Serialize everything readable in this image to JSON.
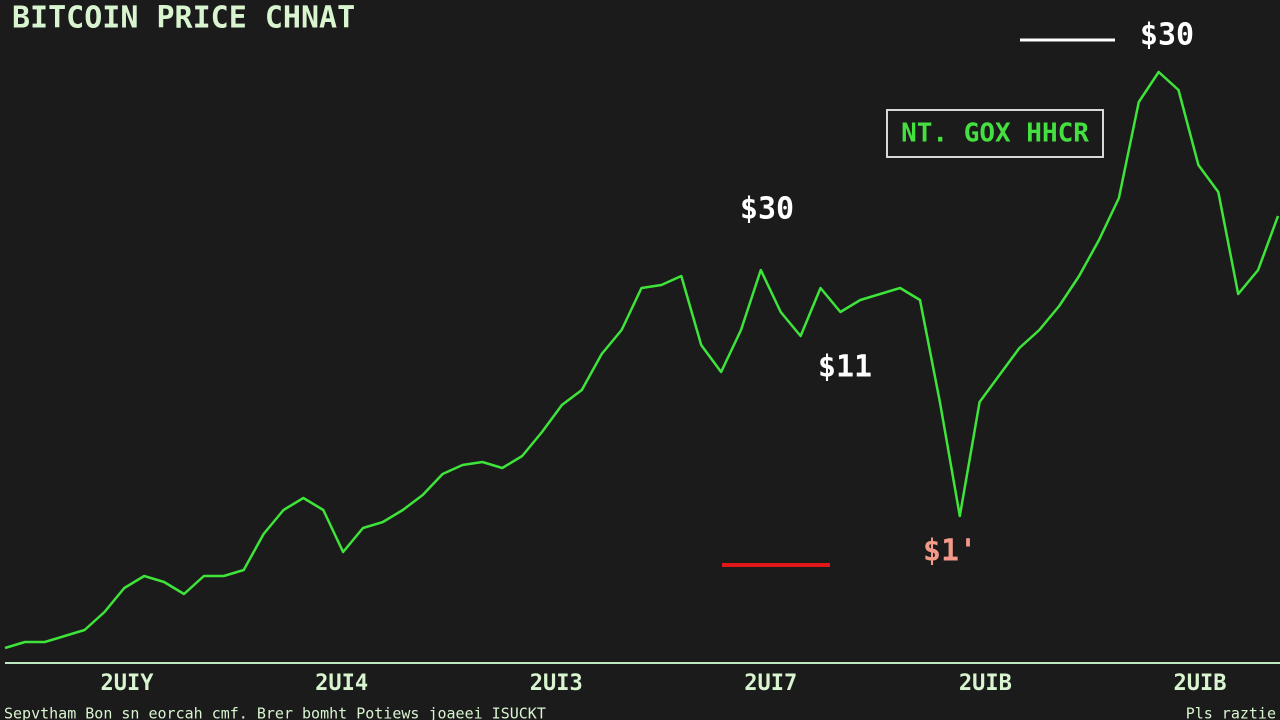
{
  "chart_data": {
    "type": "line",
    "title": "BITCOIN PRICE CHNAT",
    "x_labels": [
      "2UIY",
      "2UI4",
      "2UI3",
      "2UI7",
      "2UIB",
      "2UIB"
    ],
    "values": [
      2,
      3,
      3,
      4,
      5,
      8,
      12,
      14,
      13,
      11,
      14,
      14,
      15,
      21,
      25,
      27,
      25,
      18,
      22,
      23,
      25,
      27.5,
      31,
      32.5,
      33,
      32,
      34,
      38,
      42.5,
      45,
      51,
      55,
      62,
      62.5,
      64,
      52.5,
      48,
      55,
      65,
      58,
      54,
      62,
      58,
      60,
      61,
      62,
      60,
      43,
      24,
      43,
      47.5,
      52,
      55,
      59,
      64,
      70,
      77,
      93,
      98,
      95,
      82.5,
      78,
      61,
      65,
      74
    ],
    "color": "#3ee43a",
    "ylim": [
      0,
      100
    ],
    "annotations": [
      "$30",
      "$11",
      "$1'",
      "$30",
      "NT. GOX HHCR"
    ],
    "footnote": "Sepvtham Bon sn eorcah cmf. Brer bomht Potiews joaeei ISUCKT",
    "credit": "Pls raztie"
  }
}
